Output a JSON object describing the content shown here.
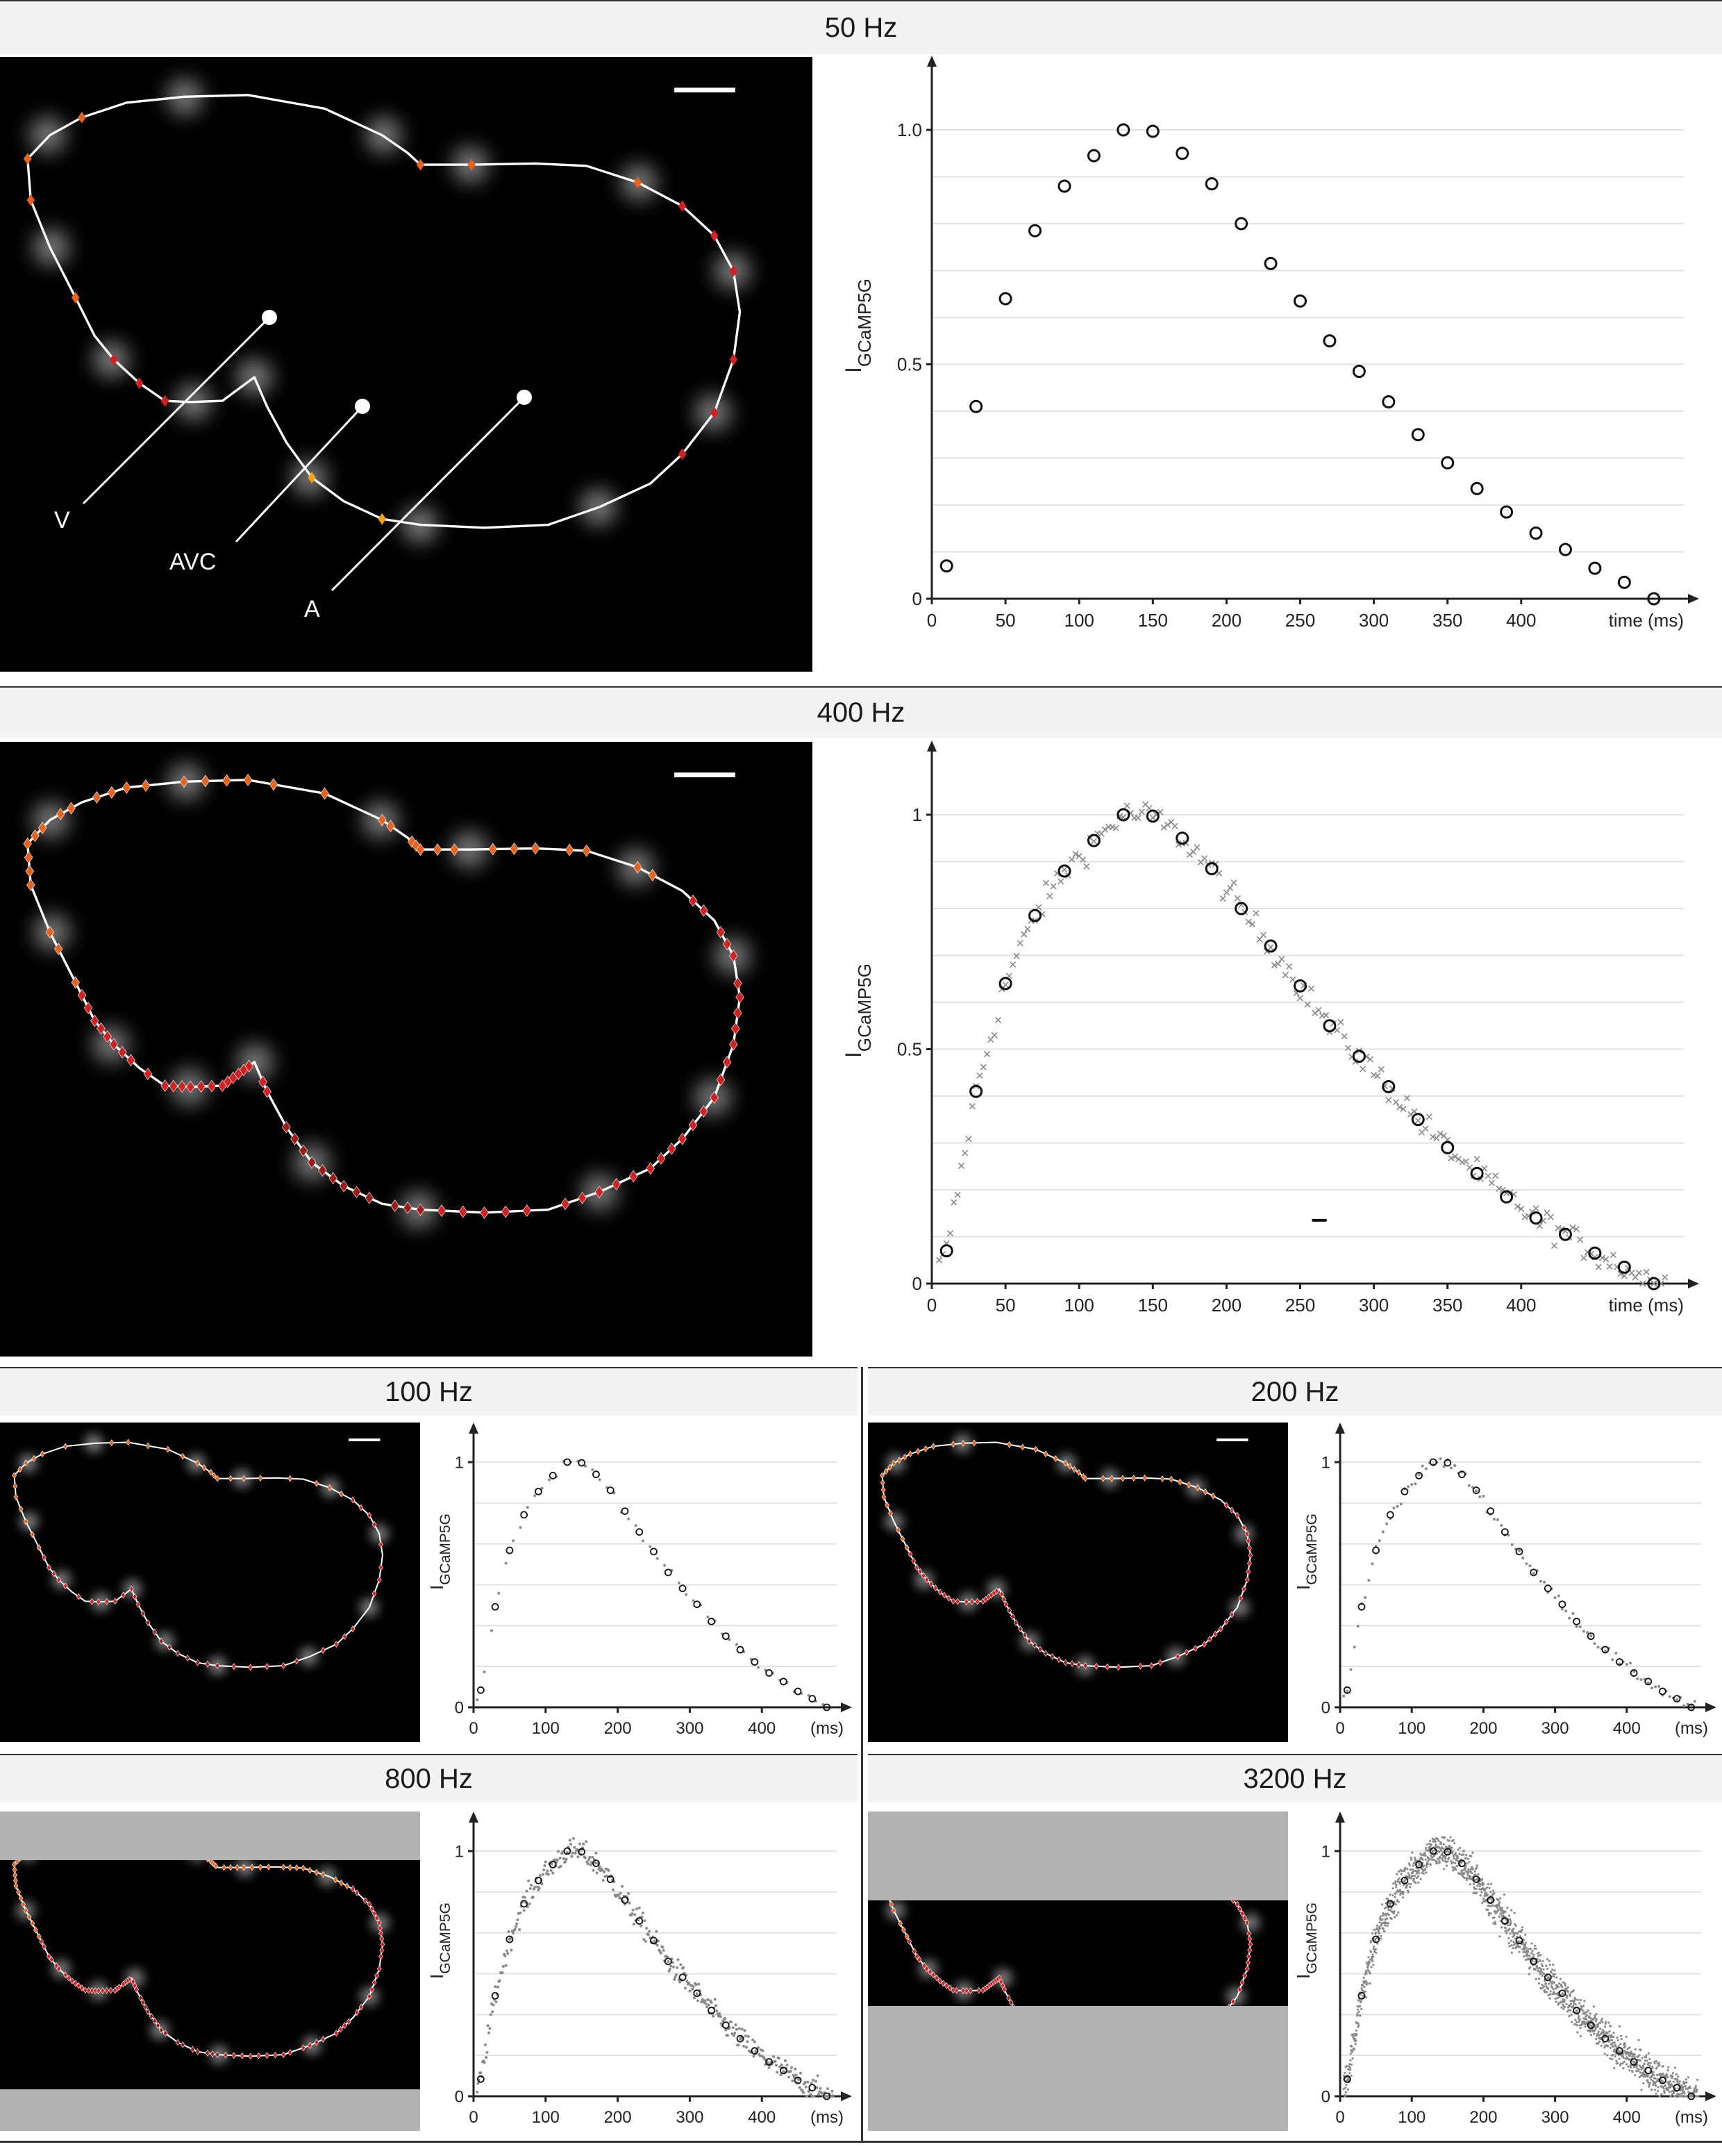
{
  "panels": [
    {
      "title": "50 Hz",
      "ylabel_main": "I",
      "ylabel_sub": "GCaMP5G",
      "xlabel": "time (ms)",
      "yticks": [
        "0",
        "0.5",
        "1.0"
      ],
      "xticks": [
        "0",
        "50",
        "100",
        "150",
        "200",
        "250",
        "300",
        "350",
        "400"
      ],
      "labels": [
        "V",
        "AVC",
        "A"
      ]
    },
    {
      "title": "400 Hz",
      "ylabel_main": "I",
      "ylabel_sub": "GCaMP5G",
      "xlabel": "time (ms)",
      "yticks": [
        "0",
        "0.5",
        "1"
      ],
      "xticks": [
        "0",
        "50",
        "100",
        "150",
        "200",
        "250",
        "300",
        "350",
        "400"
      ]
    },
    {
      "title": "100 Hz",
      "ylabel_main": "I",
      "ylabel_sub": "GCaMP5G",
      "xlabel": "(ms)",
      "yticks": [
        "0",
        "1"
      ],
      "xticks": [
        "0",
        "100",
        "200",
        "300",
        "400"
      ]
    },
    {
      "title": "200 Hz",
      "ylabel_main": "I",
      "ylabel_sub": "GCaMP5G",
      "xlabel": "(ms)",
      "yticks": [
        "0",
        "1"
      ],
      "xticks": [
        "0",
        "100",
        "200",
        "300",
        "400"
      ]
    },
    {
      "title": "800 Hz",
      "ylabel_main": "I",
      "ylabel_sub": "GCaMP5G",
      "xlabel": "(ms)",
      "yticks": [
        "0",
        "1"
      ],
      "xticks": [
        "0",
        "100",
        "200",
        "300",
        "400"
      ]
    },
    {
      "title": "3200 Hz",
      "ylabel_main": "I",
      "ylabel_sub": "GCaMP5G",
      "xlabel": "(ms)",
      "yticks": [
        "0",
        "1"
      ],
      "xticks": [
        "0",
        "100",
        "200",
        "300",
        "400"
      ]
    }
  ],
  "colors": {
    "marker_orange": "#e8621c",
    "marker_red": "#d42020",
    "marker_darkred": "#a01a1a",
    "marker_yellow": "#f5a21a",
    "gray_mask": "#b3b3b3",
    "scatter_gray": "#8a8a8a"
  },
  "chart_data": [
    {
      "type": "scatter",
      "panel": "50 Hz",
      "xlabel": "time (ms)",
      "ylabel": "I GCaMP5G",
      "xlim": [
        0,
        500
      ],
      "ylim": [
        0,
        1.05
      ],
      "series": [
        {
          "marker": "circle",
          "x": [
            10,
            30,
            50,
            70,
            90,
            110,
            130,
            150,
            170,
            190,
            210,
            230,
            250,
            270,
            290,
            310,
            330,
            350,
            370,
            390,
            410,
            430,
            450,
            470,
            490
          ],
          "y": [
            0.07,
            0.41,
            0.64,
            0.785,
            0.88,
            0.945,
            1.0,
            0.997,
            0.95,
            0.885,
            0.8,
            0.715,
            0.635,
            0.55,
            0.485,
            0.42,
            0.35,
            0.29,
            0.235,
            0.185,
            0.14,
            0.105,
            0.065,
            0.035,
            0.0
          ]
        }
      ]
    },
    {
      "type": "scatter",
      "panel": "400 Hz",
      "xlabel": "time (ms)",
      "ylabel": "I GCaMP5G",
      "xlim": [
        0,
        500
      ],
      "ylim": [
        0,
        1.05
      ],
      "series": [
        {
          "marker": "circle",
          "x": [
            10,
            30,
            50,
            70,
            90,
            110,
            130,
            150,
            170,
            190,
            210,
            230,
            250,
            270,
            290,
            310,
            330,
            350,
            370,
            390,
            410,
            430,
            450,
            470,
            490
          ],
          "y": [
            0.07,
            0.41,
            0.64,
            0.785,
            0.88,
            0.945,
            1.0,
            0.997,
            0.95,
            0.885,
            0.8,
            0.72,
            0.635,
            0.55,
            0.485,
            0.42,
            0.35,
            0.29,
            0.235,
            0.185,
            0.14,
            0.105,
            0.065,
            0.035,
            0.0
          ]
        },
        {
          "marker": "cross",
          "sampling_interval_ms": 2.5,
          "noise": 0.015
        }
      ]
    },
    {
      "type": "scatter",
      "panel": "100 Hz",
      "xlabel": "(ms)",
      "ylabel": "I GCaMP5G",
      "xlim": [
        0,
        500
      ],
      "ylim": [
        0,
        1.05
      ],
      "series": [
        {
          "marker": "circle",
          "x": [
            10,
            30,
            50,
            70,
            90,
            110,
            130,
            150,
            170,
            190,
            210,
            230,
            250,
            270,
            290,
            310,
            330,
            350,
            370,
            390,
            410,
            430,
            450,
            470,
            490
          ],
          "y": [
            0.07,
            0.41,
            0.64,
            0.785,
            0.88,
            0.945,
            1.0,
            0.997,
            0.95,
            0.885,
            0.8,
            0.715,
            0.635,
            0.55,
            0.485,
            0.42,
            0.35,
            0.29,
            0.235,
            0.185,
            0.14,
            0.105,
            0.065,
            0.035,
            0.0
          ]
        },
        {
          "marker": "dot",
          "sampling_interval_ms": 10,
          "noise": 0.01
        }
      ]
    },
    {
      "type": "scatter",
      "panel": "200 Hz",
      "xlabel": "(ms)",
      "ylabel": "I GCaMP5G",
      "xlim": [
        0,
        500
      ],
      "ylim": [
        0,
        1.05
      ],
      "series": [
        {
          "marker": "circle",
          "x": [
            10,
            30,
            50,
            70,
            90,
            110,
            130,
            150,
            170,
            190,
            210,
            230,
            250,
            270,
            290,
            310,
            330,
            350,
            370,
            390,
            410,
            430,
            450,
            470,
            490
          ],
          "y": [
            0.07,
            0.41,
            0.64,
            0.785,
            0.88,
            0.945,
            1.0,
            0.997,
            0.95,
            0.885,
            0.8,
            0.715,
            0.635,
            0.55,
            0.485,
            0.42,
            0.35,
            0.29,
            0.235,
            0.185,
            0.14,
            0.105,
            0.065,
            0.035,
            0.0
          ]
        },
        {
          "marker": "dot",
          "sampling_interval_ms": 5,
          "noise": 0.012
        }
      ]
    },
    {
      "type": "scatter",
      "panel": "800 Hz",
      "xlabel": "(ms)",
      "ylabel": "I GCaMP5G",
      "xlim": [
        0,
        500
      ],
      "ylim": [
        0,
        1.05
      ],
      "series": [
        {
          "marker": "circle",
          "x": [
            10,
            30,
            50,
            70,
            90,
            110,
            130,
            150,
            170,
            190,
            210,
            230,
            250,
            270,
            290,
            310,
            330,
            350,
            370,
            390,
            410,
            430,
            450,
            470,
            490
          ],
          "y": [
            0.07,
            0.41,
            0.64,
            0.785,
            0.88,
            0.945,
            1.0,
            0.997,
            0.95,
            0.885,
            0.8,
            0.715,
            0.635,
            0.55,
            0.485,
            0.42,
            0.35,
            0.29,
            0.235,
            0.185,
            0.14,
            0.105,
            0.065,
            0.035,
            0.0
          ]
        },
        {
          "marker": "dot",
          "sampling_interval_ms": 1.25,
          "noise": 0.025
        }
      ]
    },
    {
      "type": "scatter",
      "panel": "3200 Hz",
      "xlabel": "(ms)",
      "ylabel": "I GCaMP5G",
      "xlim": [
        0,
        500
      ],
      "ylim": [
        0,
        1.05
      ],
      "series": [
        {
          "marker": "circle",
          "x": [
            10,
            30,
            50,
            70,
            90,
            110,
            130,
            150,
            170,
            190,
            210,
            230,
            250,
            270,
            290,
            310,
            330,
            350,
            370,
            390,
            410,
            430,
            450,
            470,
            490
          ],
          "y": [
            0.07,
            0.41,
            0.64,
            0.785,
            0.88,
            0.945,
            1.0,
            0.997,
            0.95,
            0.885,
            0.8,
            0.715,
            0.635,
            0.55,
            0.485,
            0.42,
            0.35,
            0.29,
            0.235,
            0.185,
            0.14,
            0.105,
            0.065,
            0.035,
            0.0
          ]
        },
        {
          "marker": "dot",
          "sampling_interval_ms": 0.3125,
          "noise": 0.06
        }
      ]
    }
  ]
}
